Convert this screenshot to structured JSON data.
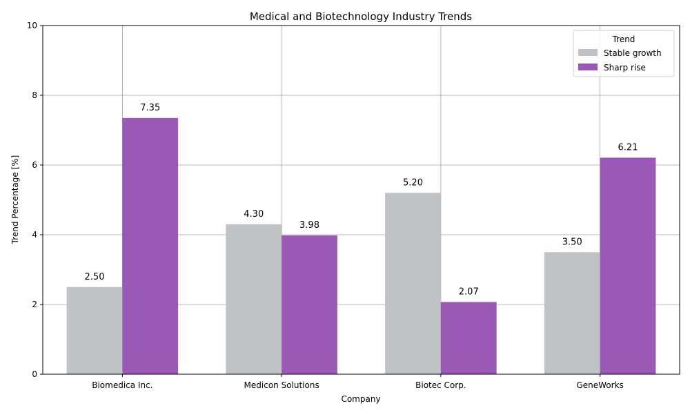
{
  "chart_data": {
    "type": "bar",
    "title": "Medical and Biotechnology Industry Trends",
    "xlabel": "Company",
    "ylabel": "Trend Percentage [%]",
    "categories": [
      "Biomedica Inc.",
      "Medicon Solutions",
      "Biotec Corp.",
      "GeneWorks"
    ],
    "series": [
      {
        "name": "Stable growth",
        "values": [
          2.5,
          4.3,
          5.2,
          3.5
        ],
        "color": "#bfc3c6"
      },
      {
        "name": "Sharp rise",
        "values": [
          7.35,
          3.98,
          2.07,
          6.21
        ],
        "color": "#9b59b6"
      }
    ],
    "ylim": [
      0,
      10
    ],
    "yticks": [
      "0",
      "2",
      "4",
      "6",
      "8",
      "10"
    ],
    "grid": true,
    "legend": {
      "title": "Trend",
      "placement": "top-right"
    },
    "value_label_format": "2 decimals"
  }
}
